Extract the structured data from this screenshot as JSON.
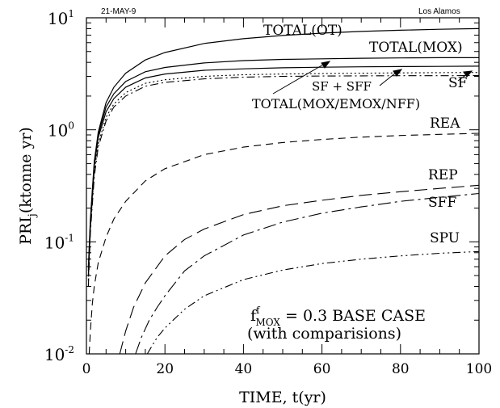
{
  "header": {
    "date": "21-MAY-9",
    "site": "Los Alamos"
  },
  "chart_data": {
    "type": "line",
    "xlabel": "TIME, t(yr)",
    "ylabel_main": "PRI",
    "ylabel_sub": "j",
    "ylabel_tail": "(ktonne yr)",
    "xlim": [
      0,
      100
    ],
    "ylim": [
      0.01,
      10
    ],
    "y_scale": "log",
    "x_ticks": [
      "0",
      "20",
      "40",
      "60",
      "80",
      "100"
    ],
    "y_ticks": [
      {
        "value": 10,
        "base": "10",
        "exp": "1"
      },
      {
        "value": 1,
        "base": "10",
        "exp": "0"
      },
      {
        "value": 0.1,
        "base": "10",
        "exp": "-1"
      },
      {
        "value": 0.01,
        "base": "10",
        "exp": "-2"
      }
    ],
    "grid": false,
    "annotation": {
      "line1_f": "f",
      "line1_sup": "f",
      "line1_sub": "MOX",
      "line1_rest": " = 0.3 BASE CASE",
      "line2": "(with comparisions)"
    },
    "series": [
      {
        "name": "TOTAL(OT)",
        "style": "solid",
        "x": [
          0.5,
          1,
          2,
          3,
          5,
          7,
          10,
          15,
          20,
          30,
          40,
          50,
          60,
          70,
          80,
          90,
          100
        ],
        "y": [
          0.06,
          0.16,
          0.52,
          0.95,
          1.75,
          2.4,
          3.2,
          4.2,
          4.9,
          5.9,
          6.5,
          6.95,
          7.3,
          7.55,
          7.75,
          7.9,
          8.0
        ]
      },
      {
        "name": "TOTAL(MOX)",
        "style": "solid",
        "x": [
          0.5,
          1,
          2,
          3,
          5,
          7,
          10,
          15,
          20,
          30,
          40,
          50,
          60,
          70,
          80,
          90,
          100
        ],
        "y": [
          0.055,
          0.15,
          0.5,
          0.9,
          1.6,
          2.1,
          2.7,
          3.3,
          3.6,
          3.95,
          4.15,
          4.25,
          4.3,
          4.35,
          4.38,
          4.4,
          4.4
        ]
      },
      {
        "name": "TOTAL(MOX/EMOX/NFF)",
        "style": "solid",
        "x": [
          0.5,
          1,
          2,
          3,
          5,
          7,
          10,
          15,
          20,
          30,
          40,
          50,
          60,
          70,
          80,
          90,
          100
        ],
        "y": [
          0.05,
          0.14,
          0.47,
          0.85,
          1.45,
          1.9,
          2.4,
          2.9,
          3.15,
          3.4,
          3.5,
          3.58,
          3.62,
          3.65,
          3.67,
          3.68,
          3.7
        ]
      },
      {
        "name": "SF + SFF",
        "style": "dotted",
        "x": [
          0.5,
          1,
          2,
          3,
          5,
          7,
          10,
          15,
          20,
          30,
          40,
          50,
          60,
          70,
          80,
          90,
          100
        ],
        "y": [
          0.045,
          0.13,
          0.42,
          0.75,
          1.3,
          1.7,
          2.15,
          2.6,
          2.8,
          3.0,
          3.1,
          3.15,
          3.18,
          3.2,
          3.22,
          3.24,
          3.25
        ]
      },
      {
        "name": "SF",
        "style": "dashdot",
        "x": [
          0.5,
          1,
          2,
          3,
          5,
          7,
          10,
          15,
          20,
          30,
          40,
          50,
          60,
          70,
          80,
          90,
          100
        ],
        "y": [
          0.04,
          0.12,
          0.38,
          0.7,
          1.2,
          1.6,
          2.0,
          2.45,
          2.65,
          2.85,
          2.95,
          3.0,
          3.02,
          3.03,
          3.04,
          3.04,
          3.05
        ]
      },
      {
        "name": "REA",
        "style": "dashed",
        "x": [
          0.7,
          1,
          1.5,
          2,
          3,
          5,
          7,
          10,
          15,
          20,
          30,
          40,
          50,
          60,
          70,
          80,
          90,
          100
        ],
        "y": [
          0.01,
          0.016,
          0.028,
          0.04,
          0.065,
          0.11,
          0.16,
          0.23,
          0.35,
          0.45,
          0.6,
          0.7,
          0.77,
          0.82,
          0.86,
          0.89,
          0.91,
          0.93
        ]
      },
      {
        "name": "REP",
        "style": "longdash",
        "x": [
          8.5,
          10,
          12,
          15,
          20,
          25,
          30,
          40,
          50,
          60,
          70,
          80,
          90,
          100
        ],
        "y": [
          0.01,
          0.016,
          0.026,
          0.043,
          0.075,
          0.105,
          0.13,
          0.175,
          0.21,
          0.235,
          0.26,
          0.28,
          0.3,
          0.32
        ]
      },
      {
        "name": "SFF",
        "style": "longdashdot",
        "x": [
          12.5,
          14,
          16,
          18,
          20,
          25,
          30,
          40,
          50,
          60,
          70,
          80,
          90,
          100
        ],
        "y": [
          0.01,
          0.014,
          0.02,
          0.026,
          0.033,
          0.055,
          0.075,
          0.115,
          0.15,
          0.18,
          0.205,
          0.23,
          0.25,
          0.27
        ]
      },
      {
        "name": "SPU",
        "style": "dashdotdot",
        "x": [
          15.5,
          18,
          20,
          25,
          30,
          40,
          50,
          60,
          70,
          80,
          90,
          100
        ],
        "y": [
          0.01,
          0.014,
          0.017,
          0.025,
          0.033,
          0.046,
          0.056,
          0.064,
          0.07,
          0.075,
          0.079,
          0.082
        ]
      }
    ],
    "labels": [
      {
        "text": "TOTAL(OT)"
      },
      {
        "text": "TOTAL(MOX)"
      },
      {
        "text": "SF + SFF"
      },
      {
        "text": "SF"
      },
      {
        "text": "TOTAL(MOX/EMOX/NFF)"
      },
      {
        "text": "REA"
      },
      {
        "text": "REP"
      },
      {
        "text": "SFF"
      },
      {
        "text": "SPU"
      }
    ]
  }
}
